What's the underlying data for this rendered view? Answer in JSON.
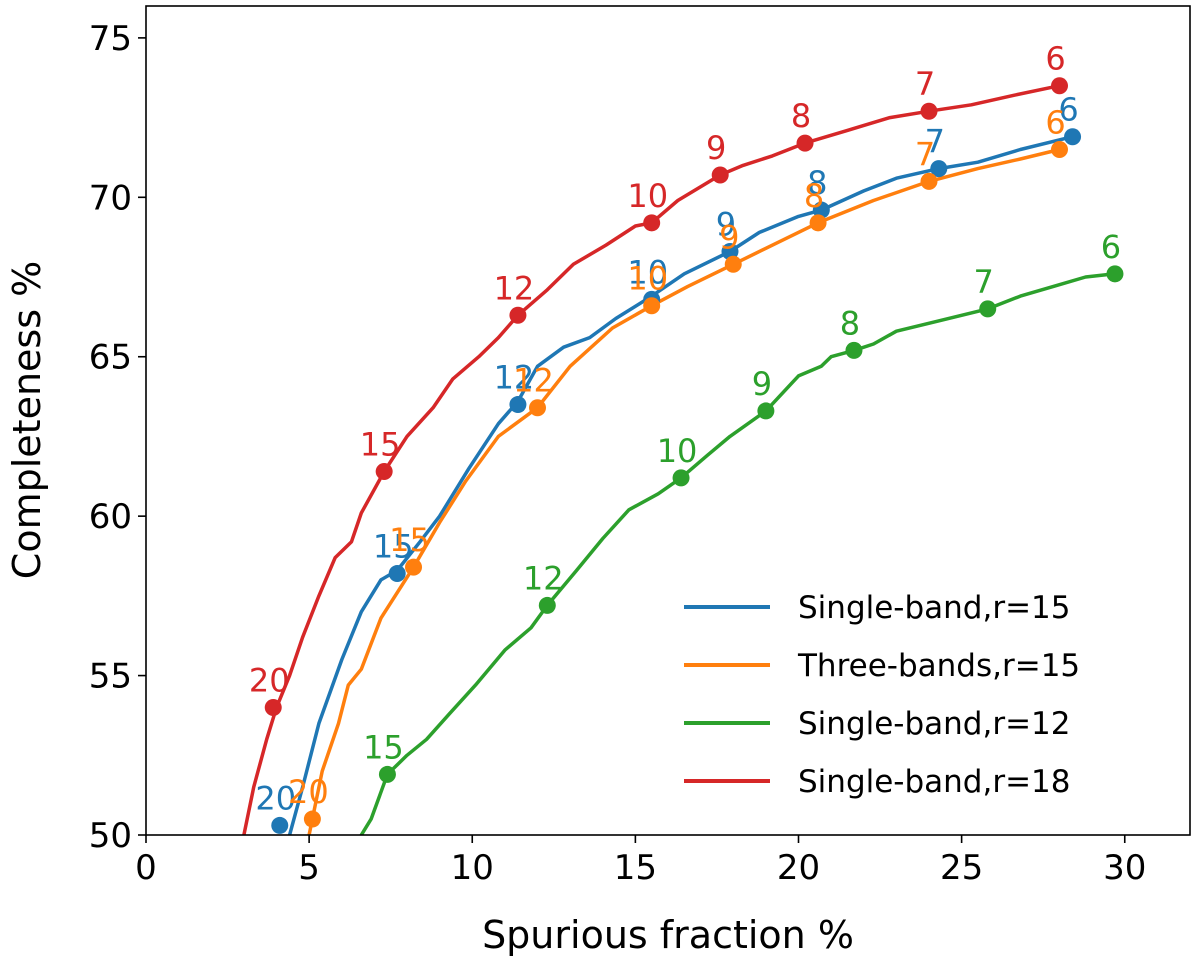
{
  "chart_data": {
    "type": "line",
    "xlabel": "Spurious fraction %",
    "ylabel": "Completeness %",
    "xlim": [
      0,
      32
    ],
    "ylim": [
      50,
      76
    ],
    "xticks": [
      0,
      5,
      10,
      15,
      20,
      25,
      30
    ],
    "yticks": [
      50,
      55,
      60,
      65,
      70,
      75
    ],
    "grid": false,
    "legend_position": "lower-right",
    "series": [
      {
        "name": "Single-band,r=15",
        "color": "#1f77b4",
        "line": [
          [
            4.4,
            50
          ],
          [
            4.8,
            51.5
          ],
          [
            5.3,
            53.5
          ],
          [
            6.0,
            55.5
          ],
          [
            6.6,
            57.0
          ],
          [
            7.2,
            58.0
          ],
          [
            7.7,
            58.3
          ],
          [
            8.4,
            59.2
          ],
          [
            9.0,
            60.0
          ],
          [
            9.9,
            61.5
          ],
          [
            10.8,
            62.9
          ],
          [
            11.4,
            63.6
          ],
          [
            12.0,
            64.7
          ],
          [
            12.8,
            65.3
          ],
          [
            13.6,
            65.6
          ],
          [
            14.4,
            66.2
          ],
          [
            15.5,
            66.9
          ],
          [
            16.5,
            67.6
          ],
          [
            17.9,
            68.3
          ],
          [
            18.8,
            68.9
          ],
          [
            20.0,
            69.4
          ],
          [
            20.7,
            69.6
          ],
          [
            22.0,
            70.2
          ],
          [
            23.0,
            70.6
          ],
          [
            24.3,
            70.9
          ],
          [
            25.5,
            71.1
          ],
          [
            26.8,
            71.5
          ],
          [
            28.4,
            71.9
          ]
        ],
        "points": [
          {
            "x": 4.1,
            "y": 50.3,
            "label": "20"
          },
          {
            "x": 7.7,
            "y": 58.2,
            "label": "15"
          },
          {
            "x": 11.4,
            "y": 63.5,
            "label": "12"
          },
          {
            "x": 15.5,
            "y": 66.8,
            "label": "10"
          },
          {
            "x": 17.9,
            "y": 68.3,
            "label": "9"
          },
          {
            "x": 20.7,
            "y": 69.6,
            "label": "8"
          },
          {
            "x": 24.3,
            "y": 70.9,
            "label": "7"
          },
          {
            "x": 28.4,
            "y": 71.9,
            "label": "6"
          }
        ]
      },
      {
        "name": "Three-bands,r=15",
        "color": "#ff7f0e",
        "line": [
          [
            5.0,
            50
          ],
          [
            5.4,
            52.0
          ],
          [
            5.9,
            53.5
          ],
          [
            6.2,
            54.7
          ],
          [
            6.6,
            55.2
          ],
          [
            7.2,
            56.8
          ],
          [
            8.2,
            58.4
          ],
          [
            9.0,
            59.8
          ],
          [
            9.8,
            61.1
          ],
          [
            10.8,
            62.5
          ],
          [
            12.0,
            63.4
          ],
          [
            13.0,
            64.7
          ],
          [
            14.3,
            65.9
          ],
          [
            15.5,
            66.6
          ],
          [
            16.6,
            67.2
          ],
          [
            18.0,
            67.9
          ],
          [
            19.0,
            68.4
          ],
          [
            20.6,
            69.2
          ],
          [
            22.3,
            69.9
          ],
          [
            24.0,
            70.5
          ],
          [
            25.5,
            70.9
          ],
          [
            26.8,
            71.2
          ],
          [
            28.0,
            71.5
          ]
        ],
        "points": [
          {
            "x": 5.1,
            "y": 50.5,
            "label": "20"
          },
          {
            "x": 8.2,
            "y": 58.4,
            "label": "15"
          },
          {
            "x": 12.0,
            "y": 63.4,
            "label": "12"
          },
          {
            "x": 15.5,
            "y": 66.6,
            "label": "10"
          },
          {
            "x": 18.0,
            "y": 67.9,
            "label": "9"
          },
          {
            "x": 20.6,
            "y": 69.2,
            "label": "8"
          },
          {
            "x": 24.0,
            "y": 70.5,
            "label": "7"
          },
          {
            "x": 28.0,
            "y": 71.5,
            "label": "6"
          }
        ]
      },
      {
        "name": "Single-band,r=12",
        "color": "#2ca02c",
        "line": [
          [
            6.6,
            50
          ],
          [
            6.9,
            50.5
          ],
          [
            7.4,
            51.9
          ],
          [
            8.0,
            52.5
          ],
          [
            8.6,
            53.0
          ],
          [
            9.3,
            53.8
          ],
          [
            10.1,
            54.7
          ],
          [
            11.0,
            55.8
          ],
          [
            11.8,
            56.5
          ],
          [
            12.3,
            57.2
          ],
          [
            13.2,
            58.3
          ],
          [
            14.0,
            59.3
          ],
          [
            14.8,
            60.2
          ],
          [
            15.7,
            60.7
          ],
          [
            16.4,
            61.2
          ],
          [
            17.2,
            61.9
          ],
          [
            17.9,
            62.5
          ],
          [
            19.0,
            63.3
          ],
          [
            20.0,
            64.4
          ],
          [
            20.7,
            64.7
          ],
          [
            21.0,
            65.0
          ],
          [
            21.7,
            65.2
          ],
          [
            22.3,
            65.4
          ],
          [
            23.0,
            65.8
          ],
          [
            24.2,
            66.1
          ],
          [
            25.0,
            66.3
          ],
          [
            25.8,
            66.5
          ],
          [
            26.8,
            66.9
          ],
          [
            27.8,
            67.2
          ],
          [
            28.8,
            67.5
          ],
          [
            29.7,
            67.6
          ]
        ],
        "points": [
          {
            "x": 7.4,
            "y": 51.9,
            "label": "15"
          },
          {
            "x": 12.3,
            "y": 57.2,
            "label": "12"
          },
          {
            "x": 16.4,
            "y": 61.2,
            "label": "10"
          },
          {
            "x": 19.0,
            "y": 63.3,
            "label": "9"
          },
          {
            "x": 21.7,
            "y": 65.2,
            "label": "8"
          },
          {
            "x": 25.8,
            "y": 66.5,
            "label": "7"
          },
          {
            "x": 29.7,
            "y": 67.6,
            "label": "6"
          }
        ]
      },
      {
        "name": "Single-band,r=18",
        "color": "#d62728",
        "line": [
          [
            3.0,
            50
          ],
          [
            3.3,
            51.5
          ],
          [
            3.7,
            53.0
          ],
          [
            4.0,
            54.0
          ],
          [
            4.4,
            55.0
          ],
          [
            4.8,
            56.2
          ],
          [
            5.3,
            57.5
          ],
          [
            5.8,
            58.7
          ],
          [
            6.3,
            59.2
          ],
          [
            6.6,
            60.1
          ],
          [
            7.3,
            61.4
          ],
          [
            8.0,
            62.5
          ],
          [
            8.8,
            63.4
          ],
          [
            9.4,
            64.3
          ],
          [
            10.2,
            65.0
          ],
          [
            10.8,
            65.6
          ],
          [
            11.4,
            66.3
          ],
          [
            12.3,
            67.1
          ],
          [
            13.1,
            67.9
          ],
          [
            14.1,
            68.5
          ],
          [
            15.0,
            69.1
          ],
          [
            15.5,
            69.2
          ],
          [
            16.3,
            69.9
          ],
          [
            17.6,
            70.7
          ],
          [
            18.3,
            71.0
          ],
          [
            19.2,
            71.3
          ],
          [
            20.2,
            71.7
          ],
          [
            21.5,
            72.1
          ],
          [
            22.8,
            72.5
          ],
          [
            24.0,
            72.7
          ],
          [
            25.3,
            72.9
          ],
          [
            26.6,
            73.2
          ],
          [
            28.0,
            73.5
          ]
        ],
        "points": [
          {
            "x": 3.9,
            "y": 54.0,
            "label": "20"
          },
          {
            "x": 7.3,
            "y": 61.4,
            "label": "15"
          },
          {
            "x": 11.4,
            "y": 66.3,
            "label": "12"
          },
          {
            "x": 15.5,
            "y": 69.2,
            "label": "10"
          },
          {
            "x": 17.6,
            "y": 70.7,
            "label": "9"
          },
          {
            "x": 20.2,
            "y": 71.7,
            "label": "8"
          },
          {
            "x": 24.0,
            "y": 72.7,
            "label": "7"
          },
          {
            "x": 28.0,
            "y": 73.5,
            "label": "6"
          }
        ]
      }
    ]
  }
}
